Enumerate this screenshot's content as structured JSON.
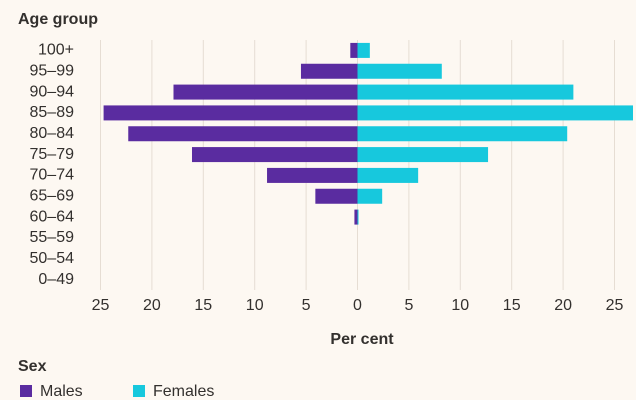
{
  "chart_data": {
    "type": "bar",
    "y_title": "Age group",
    "x_title": "Per cent",
    "legend_title": "Sex",
    "categories": [
      "100+",
      "95–99",
      "90–94",
      "85–89",
      "80–84",
      "75–79",
      "70–74",
      "65–69",
      "60–64",
      "55–59",
      "50–54",
      "0–49"
    ],
    "series": [
      {
        "name": "Males",
        "color": "#5a2ca0",
        "values": [
          -0.7,
          -5.5,
          -17.9,
          -24.7,
          -22.3,
          -16.1,
          -8.8,
          -4.1,
          -0.3,
          0,
          0,
          0
        ]
      },
      {
        "name": "Females",
        "color": "#17c8dd",
        "values": [
          1.2,
          8.2,
          21.0,
          26.8,
          20.4,
          12.7,
          5.9,
          2.4,
          0.1,
          0,
          0,
          0
        ]
      }
    ],
    "xlim": [
      -26.8,
      26.8
    ],
    "xticks": [
      {
        "value": -25,
        "label": "25"
      },
      {
        "value": -20,
        "label": "20"
      },
      {
        "value": -15,
        "label": "15"
      },
      {
        "value": -10,
        "label": "10"
      },
      {
        "value": -5,
        "label": "5"
      },
      0,
      5,
      10,
      15,
      20,
      25
    ],
    "grid": true
  }
}
